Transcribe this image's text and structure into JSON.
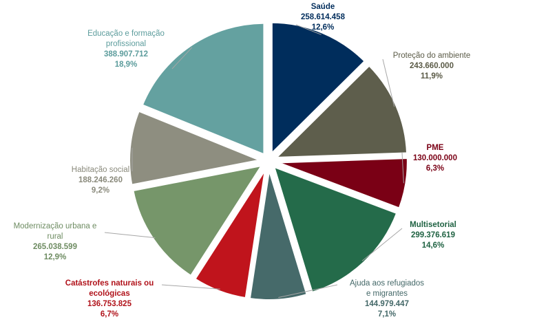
{
  "chart_data": {
    "type": "pie",
    "title": "",
    "slices": [
      {
        "name": "Saúde",
        "value": "258.614.458",
        "pct": "12,6%",
        "share": 12.6,
        "color": "#002D5C",
        "label_color": "#002D5C",
        "label_lines": [
          "Saúde"
        ]
      },
      {
        "name": "Proteção do ambiente",
        "value": "243.660.000",
        "pct": "11,9%",
        "share": 11.9,
        "color": "#5E5E4C",
        "label_color": "#5A5A46",
        "label_lines": [
          "Proteção do ambiente"
        ]
      },
      {
        "name": "PME",
        "value": "130.000.000",
        "pct": "6,3%",
        "share": 6.3,
        "color": "#7A0015",
        "label_color": "#7A0015",
        "label_lines": [
          "PME"
        ]
      },
      {
        "name": "Multisetorial",
        "value": "299.376.619",
        "pct": "14,6%",
        "share": 14.6,
        "color": "#246B4A",
        "label_color": "#1F6242",
        "label_lines": [
          "Multisetorial"
        ]
      },
      {
        "name": "Ajuda aos refugiados e migrantes",
        "value": "144.979.447",
        "pct": "7,1%",
        "share": 7.1,
        "color": "#466A6A",
        "label_color": "#446868",
        "label_lines": [
          "Ajuda aos refugiados",
          "e migrantes"
        ]
      },
      {
        "name": "Catástrofes naturais ou ecológicas",
        "value": "136.753.825",
        "pct": "6,7%",
        "share": 6.7,
        "color": "#C0141C",
        "label_color": "#B0121A",
        "label_lines": [
          "Catástrofes naturais ou",
          "ecológicas"
        ]
      },
      {
        "name": "Modernização urbana e rural",
        "value": "265.038.599",
        "pct": "12,9%",
        "share": 12.9,
        "color": "#76966A",
        "label_color": "#6E8C62",
        "label_lines": [
          "Modernização  urbana e",
          "rural"
        ]
      },
      {
        "name": "Habitação social",
        "value": "188.246.260",
        "pct": "9,2%",
        "share": 9.2,
        "color": "#8E8E80",
        "label_color": "#8A8A7C",
        "label_lines": [
          "Habitação  social"
        ]
      },
      {
        "name": "Educação e formação profissional",
        "value": "388.907.712",
        "pct": "18,9%",
        "share": 18.9,
        "color": "#64A1A0",
        "label_color": "#5C9C9C",
        "label_lines": [
          "Educação  e formação",
          "profissional"
        ]
      }
    ]
  }
}
